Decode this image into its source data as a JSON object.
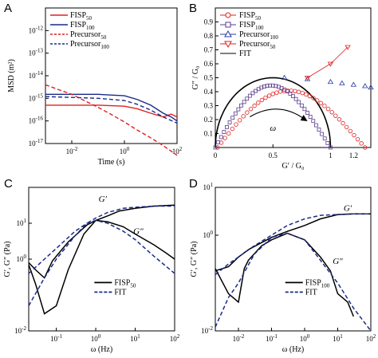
{
  "panels": {
    "A": {
      "label": "A"
    },
    "B": {
      "label": "B"
    },
    "C": {
      "label": "C"
    },
    "D": {
      "label": "D"
    }
  },
  "chart_data": [
    {
      "id": "A",
      "type": "line",
      "xlabel": "Time (s)",
      "ylabel": "MSD (m²)",
      "xscale": "log",
      "yscale": "log",
      "xlim": [
        0.001,
        100
      ],
      "ylim": [
        1e-17,
        1e-11
      ],
      "x_ticks": [
        {
          "v": 0.01,
          "label": "10"
        },
        {
          "v": 1,
          "label": "10"
        },
        {
          "v": 100,
          "label": "10"
        }
      ],
      "x_tick_exps": [
        "-2",
        "0",
        "2"
      ],
      "y_ticks": [
        {
          "v": 1e-12,
          "label": "10"
        },
        {
          "v": 1e-13,
          "label": "10"
        },
        {
          "v": 1e-14,
          "label": "10"
        },
        {
          "v": 1e-15,
          "label": "10"
        },
        {
          "v": 1e-16,
          "label": "10"
        },
        {
          "v": 1e-17,
          "label": "10"
        }
      ],
      "y_tick_exps": [
        "-12",
        "-13",
        "-14",
        "-15",
        "-16",
        "-17"
      ],
      "legend": [
        {
          "name": "FISP",
          "sub": "50",
          "color": "#e02020",
          "dash": "solid"
        },
        {
          "name": "FISP",
          "sub": "100",
          "color": "#1a2a8a",
          "dash": "solid"
        },
        {
          "name": "Precursor",
          "sub": "50",
          "color": "#e02020",
          "dash": "dashed"
        },
        {
          "name": "Precursor",
          "sub": "100",
          "color": "#1a2a8a",
          "dash": "dashed"
        }
      ],
      "series": [
        {
          "color": "#e02020",
          "dash": "solid",
          "x": [
            0.001,
            0.01,
            0.1,
            1,
            3,
            10,
            30,
            60,
            100
          ],
          "y": [
            5e-16,
            5e-16,
            5e-16,
            4.5e-16,
            3.5e-16,
            2.2e-16,
            1.5e-16,
            2e-16,
            1.5e-16
          ]
        },
        {
          "color": "#1a2a8a",
          "dash": "solid",
          "x": [
            0.001,
            0.01,
            0.1,
            1,
            3,
            10,
            30,
            60,
            100
          ],
          "y": [
            1.5e-15,
            1.5e-15,
            1.5e-15,
            1.3e-15,
            9e-16,
            5e-16,
            2.2e-16,
            1.5e-16,
            1e-16
          ]
        },
        {
          "color": "#e02020",
          "dash": "dashed",
          "x": [
            0.001,
            0.003,
            0.01,
            0.03,
            0.1,
            0.3,
            1,
            3,
            10,
            30,
            100
          ],
          "y": [
            4e-15,
            2.5e-15,
            1.5e-15,
            8e-16,
            4e-16,
            2e-16,
            9e-17,
            4e-17,
            1.8e-17,
            8e-18,
            3e-18
          ]
        },
        {
          "color": "#1a2a8a",
          "dash": "dashed",
          "x": [
            0.001,
            0.01,
            0.1,
            1,
            3,
            10,
            30,
            100
          ],
          "y": [
            1.2e-15,
            1.1e-15,
            1e-15,
            8e-16,
            5.5e-16,
            3e-16,
            1.5e-16,
            8e-17
          ]
        }
      ]
    },
    {
      "id": "B",
      "type": "scatter",
      "xlabel": "G′ / G₀",
      "ylabel": "G″ / G₀",
      "xlim": [
        0,
        1.35
      ],
      "ylim": [
        0,
        1.0
      ],
      "x_ticks": [
        {
          "v": 0,
          "label": "0"
        },
        {
          "v": 0.5,
          "label": "0.5"
        },
        {
          "v": 1,
          "label": "1"
        }
      ],
      "x_ticks_extra": [
        {
          "v": 1.2,
          "label": "1.2"
        }
      ],
      "y_ticks": [
        {
          "v": 0.1,
          "label": "0.1"
        },
        {
          "v": 0.2,
          "label": "0.2"
        },
        {
          "v": 0.3,
          "label": "0.3"
        },
        {
          "v": 0.4,
          "label": "0.4"
        },
        {
          "v": 0.5,
          "label": "0.5"
        },
        {
          "v": 0.6,
          "label": "0.6"
        },
        {
          "v": 0.7,
          "label": "0.7"
        },
        {
          "v": 0.8,
          "label": "0.8"
        },
        {
          "v": 0.9,
          "label": "0.9"
        }
      ],
      "annotation": "ω",
      "legend": [
        {
          "name": "FISP",
          "sub": "50",
          "color": "#e02020",
          "marker": "circle"
        },
        {
          "name": "FISP",
          "sub": "100",
          "color": "#5a3c8c",
          "marker": "square"
        },
        {
          "name": "Precursor",
          "sub": "100",
          "color": "#2a3aa0",
          "marker": "triangle-up"
        },
        {
          "name": "Precursor",
          "sub": "50",
          "color": "#e02020",
          "marker": "triangle-down"
        },
        {
          "name": "FIT",
          "sub": "",
          "color": "#000000",
          "marker": "line"
        }
      ],
      "series": [
        {
          "name": "fit",
          "color": "#000000",
          "kind": "semicircle",
          "center": 0.5,
          "radius": 0.5
        },
        {
          "name": "fisp50",
          "color": "#e02020",
          "kind": "arc",
          "x0": 0.02,
          "x1": 1.3,
          "peak": 0.44
        },
        {
          "name": "fisp100",
          "color": "#5a3c8c",
          "kind": "arc",
          "x0": 0.0,
          "x1": 1.0,
          "peak": 0.48
        },
        {
          "name": "prec100",
          "color": "#2a3aa0",
          "x": [
            0.6,
            0.8,
            1.0,
            1.1,
            1.2,
            1.3,
            1.35
          ],
          "y": [
            0.5,
            0.49,
            0.47,
            0.46,
            0.45,
            0.44,
            0.43
          ]
        },
        {
          "name": "prec50",
          "color": "#e02020",
          "x": [
            0.8,
            1.0,
            1.15
          ],
          "y": [
            0.5,
            0.6,
            0.72
          ]
        }
      ]
    },
    {
      "id": "C",
      "type": "line",
      "xlabel": "ω (Hz)",
      "ylabel": "G′, G″ (Pa)",
      "xscale": "log",
      "yscale": "log",
      "xlim": [
        0.02,
        100
      ],
      "ylim": [
        0.01,
        100
      ],
      "x_ticks": [
        {
          "v": 0.1,
          "label": "10"
        },
        {
          "v": 1,
          "label": "10"
        },
        {
          "v": 10,
          "label": "10"
        },
        {
          "v": 100,
          "label": "10"
        }
      ],
      "x_tick_exps": [
        "-1",
        "0",
        "1",
        "2"
      ],
      "y_ticks": [
        {
          "v": 0.01,
          "label": "10"
        },
        {
          "v": 1,
          "label": "10"
        },
        {
          "v": 10,
          "label": "10"
        }
      ],
      "y_tick_exps": [
        "-2",
        "0",
        "1"
      ],
      "annotations": [
        {
          "text": "G′",
          "x": 1.5,
          "y": 40
        },
        {
          "text": "G″",
          "x": 12,
          "y": 5
        }
      ],
      "legend": [
        {
          "name": "FISP",
          "sub": "50",
          "color": "#000000",
          "dash": "solid"
        },
        {
          "name": "FIT",
          "sub": "",
          "color": "#1a2a8a",
          "dash": "dashed"
        }
      ],
      "series": [
        {
          "name": "Gp-data",
          "color": "#000000",
          "dash": "solid",
          "x": [
            0.02,
            0.03,
            0.05,
            0.08,
            0.1,
            0.2,
            0.4,
            0.6,
            1,
            2,
            4,
            10,
            30,
            100
          ],
          "y": [
            0.8,
            0.5,
            0.3,
            0.9,
            1.2,
            3,
            6,
            9,
            12,
            16,
            22,
            26,
            30,
            32
          ]
        },
        {
          "name": "Gpp-data",
          "color": "#000000",
          "dash": "solid",
          "x": [
            0.02,
            0.03,
            0.05,
            0.1,
            0.2,
            0.5,
            1,
            2,
            5,
            10,
            30,
            60,
            100
          ],
          "y": [
            0.7,
            0.2,
            0.03,
            0.05,
            0.5,
            5,
            12,
            11,
            8,
            5,
            2.5,
            1.5,
            1
          ]
        },
        {
          "name": "Gp-fit",
          "color": "#1a2a8a",
          "dash": "dashed",
          "x": [
            0.02,
            0.05,
            0.1,
            0.3,
            0.6,
            1,
            2,
            5,
            10,
            30,
            100
          ],
          "y": [
            0.05,
            0.3,
            1,
            4.5,
            10,
            14,
            20,
            26,
            28,
            30,
            30
          ]
        },
        {
          "name": "Gpp-fit",
          "color": "#1a2a8a",
          "dash": "dashed",
          "x": [
            0.02,
            0.05,
            0.1,
            0.3,
            0.6,
            1,
            2,
            5,
            10,
            30,
            100
          ],
          "y": [
            0.4,
            1,
            2,
            6,
            10,
            12,
            10,
            6,
            3.5,
            1.2,
            0.4
          ]
        }
      ]
    },
    {
      "id": "D",
      "type": "line",
      "xlabel": "ω (Hz)",
      "ylabel": "G′, G″ (Pa)",
      "xscale": "log",
      "yscale": "log",
      "xlim": [
        0.002,
        100
      ],
      "ylim": [
        0.01,
        10
      ],
      "x_ticks": [
        {
          "v": 0.01,
          "label": "10"
        },
        {
          "v": 0.1,
          "label": "10"
        },
        {
          "v": 1,
          "label": "10"
        },
        {
          "v": 10,
          "label": "10"
        },
        {
          "v": 100,
          "label": "10"
        }
      ],
      "x_tick_exps": [
        "-2",
        "-1",
        "0",
        "1",
        "2"
      ],
      "y_ticks": [
        {
          "v": 0.01,
          "label": "10"
        },
        {
          "v": 1,
          "label": "10"
        },
        {
          "v": 10,
          "label": "10"
        }
      ],
      "y_tick_exps": [
        "-2",
        "0",
        "1"
      ],
      "annotations": [
        {
          "text": "G′",
          "x": 20,
          "y": 3.2
        },
        {
          "text": "G″",
          "x": 10,
          "y": 0.25
        }
      ],
      "legend": [
        {
          "name": "FISP",
          "sub": "100",
          "color": "#000000",
          "dash": "solid"
        },
        {
          "name": "FIT",
          "sub": "",
          "color": "#1a2a8a",
          "dash": "dashed"
        }
      ],
      "series": [
        {
          "name": "Gp-data",
          "color": "#000000",
          "dash": "solid",
          "x": [
            0.002,
            0.005,
            0.01,
            0.02,
            0.05,
            0.1,
            0.3,
            1,
            3,
            10,
            30,
            100
          ],
          "y": [
            0.18,
            0.22,
            0.35,
            0.5,
            0.7,
            0.9,
            1.2,
            1.6,
            2.2,
            2.7,
            2.8,
            2.8
          ]
        },
        {
          "name": "Gpp-data",
          "color": "#000000",
          "dash": "solid",
          "x": [
            0.002,
            0.005,
            0.01,
            0.015,
            0.02,
            0.05,
            0.1,
            0.3,
            1,
            3,
            6,
            10,
            20,
            30
          ],
          "y": [
            0.2,
            0.06,
            0.04,
            0.2,
            0.3,
            0.6,
            0.8,
            1.1,
            0.8,
            0.35,
            0.18,
            0.06,
            0.04,
            0.02
          ]
        },
        {
          "name": "Gp-fit",
          "color": "#1a2a8a",
          "dash": "dashed",
          "x": [
            0.002,
            0.005,
            0.01,
            0.03,
            0.1,
            0.3,
            1,
            3,
            10,
            30,
            100
          ],
          "y": [
            0.15,
            0.25,
            0.35,
            0.6,
            1,
            1.6,
            2.2,
            2.6,
            2.7,
            2.8,
            2.8
          ]
        },
        {
          "name": "Gpp-fit",
          "color": "#1a2a8a",
          "dash": "dashed",
          "x": [
            0.002,
            0.005,
            0.01,
            0.03,
            0.1,
            0.3,
            1,
            3,
            10,
            30,
            100
          ],
          "y": [
            0.012,
            0.05,
            0.1,
            0.4,
            0.9,
            1.1,
            0.8,
            0.3,
            0.1,
            0.03,
            0.01
          ]
        }
      ]
    }
  ]
}
